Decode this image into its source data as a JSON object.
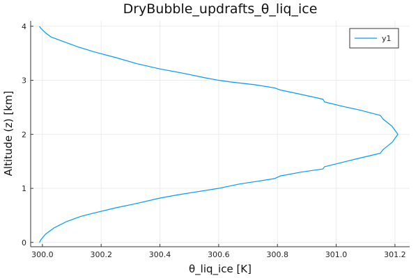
{
  "chart_data": {
    "type": "line",
    "title": "DryBubble_updrafts_θ_liq_ice",
    "xlabel": "θ_liq_ice [K]",
    "ylabel": "Altitude (z) [km]",
    "xlim": [
      299.96,
      301.25
    ],
    "ylim": [
      -0.08,
      4.1
    ],
    "xticks": [
      300.0,
      300.2,
      300.4,
      300.6,
      300.8,
      301.0,
      301.2
    ],
    "xtick_labels": [
      "300.0",
      "300.2",
      "300.4",
      "300.6",
      "300.8",
      "301.0",
      "301.2"
    ],
    "yticks": [
      0,
      1,
      2,
      3,
      4
    ],
    "ytick_labels": [
      "0",
      "1",
      "2",
      "3",
      "4"
    ],
    "grid": true,
    "legend_position": "top-right",
    "colors": {
      "series": "#009AFA",
      "grid": "#EBEBEB",
      "axis": "#333333"
    },
    "series": [
      {
        "name": "y1",
        "x": [
          299.99,
          299.995,
          300.01,
          300.04,
          300.08,
          300.13,
          300.18,
          300.25,
          300.32,
          300.4,
          300.46,
          300.53,
          300.6,
          300.67,
          300.73,
          300.79,
          300.81,
          300.88,
          300.955,
          300.96,
          301.02,
          301.08,
          301.15,
          301.16,
          301.19,
          301.21,
          301.19,
          301.16,
          301.15,
          301.08,
          301.02,
          300.96,
          300.955,
          300.88,
          300.81,
          300.79,
          300.72,
          300.64,
          300.6,
          300.55,
          300.48,
          300.4,
          300.32,
          300.25,
          300.18,
          300.12,
          300.07,
          300.03,
          300.01,
          299.995,
          299.99
        ],
        "y": [
          0.0,
          0.05,
          0.15,
          0.27,
          0.38,
          0.48,
          0.55,
          0.64,
          0.72,
          0.82,
          0.88,
          0.94,
          1.0,
          1.08,
          1.13,
          1.18,
          1.23,
          1.3,
          1.36,
          1.4,
          1.48,
          1.56,
          1.65,
          1.72,
          1.85,
          2.0,
          2.15,
          2.28,
          2.35,
          2.45,
          2.52,
          2.6,
          2.65,
          2.74,
          2.82,
          2.86,
          2.92,
          2.97,
          3.0,
          3.05,
          3.13,
          3.21,
          3.31,
          3.42,
          3.52,
          3.62,
          3.72,
          3.8,
          3.88,
          3.96,
          4.0
        ]
      }
    ]
  }
}
